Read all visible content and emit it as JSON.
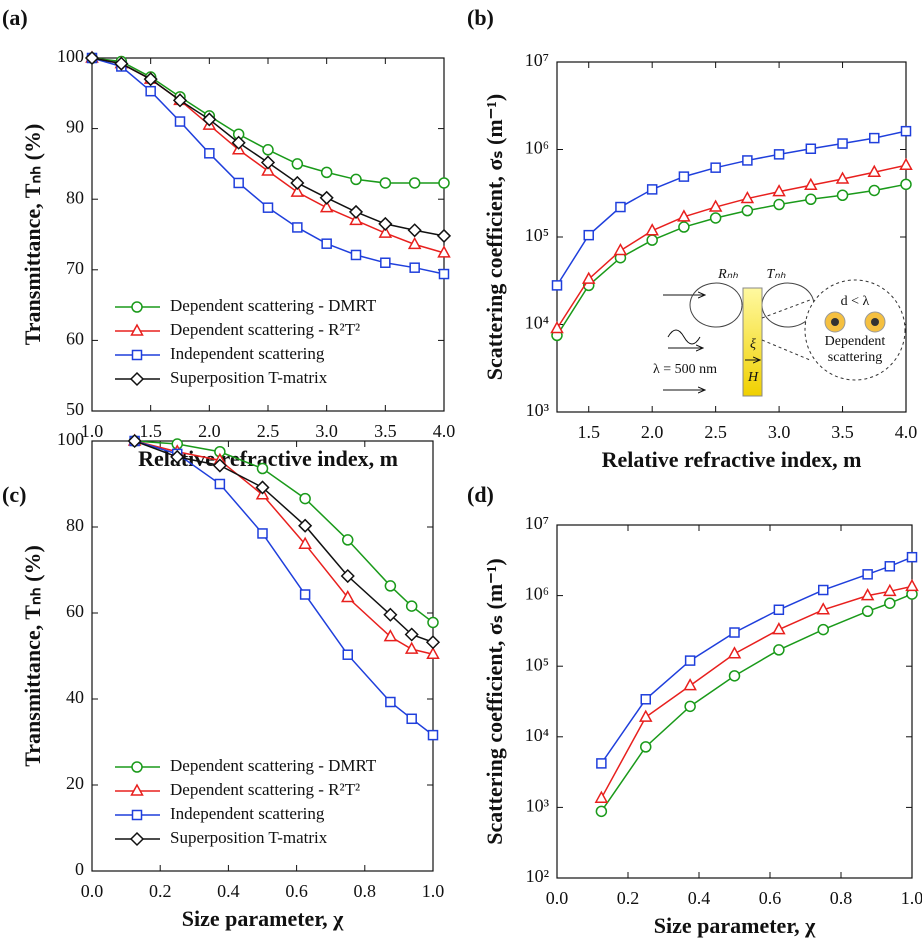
{
  "chart_data": [
    {
      "type": "line",
      "panel_label": "(a)",
      "x_label": "Relative refractive index, m",
      "y_label": "Transmittance, Tₙₕ (%)",
      "x": [
        1.0,
        1.25,
        1.5,
        1.75,
        2.0,
        2.25,
        2.5,
        2.75,
        3.0,
        3.25,
        3.5,
        3.75,
        4.0
      ],
      "xlim": [
        1,
        4
      ],
      "ylim": [
        50,
        100
      ],
      "xticks": [
        {
          "value": 1,
          "label": "1.0"
        },
        1.5,
        {
          "value": 2,
          "label": "2.0"
        },
        2.5,
        {
          "value": 3,
          "label": "3.0"
        },
        3.5,
        {
          "value": 4,
          "label": "4.0"
        }
      ],
      "yticks": [
        50,
        60,
        70,
        80,
        90,
        100
      ],
      "legend": "lower left",
      "series": [
        {
          "name": "Dependent scattering - DMRT",
          "color": "#1a9a1a",
          "marker": "circle",
          "values": [
            100,
            99.5,
            97.3,
            94.5,
            91.8,
            89.2,
            87,
            85,
            83.8,
            82.8,
            82.3,
            82.3,
            82.3
          ]
        },
        {
          "name": "Dependent scattering - R²T²",
          "color": "#e8201e",
          "marker": "triangle",
          "values": [
            100,
            99.2,
            97,
            94,
            90.5,
            87,
            84,
            81,
            78.8,
            77,
            75.2,
            73.6,
            72.4
          ]
        },
        {
          "name": "Independent scattering",
          "color": "#1f3fdc",
          "marker": "square",
          "values": [
            100,
            98.8,
            95.3,
            91,
            86.5,
            82.3,
            78.8,
            76,
            73.7,
            72.1,
            71,
            70.3,
            69.4
          ]
        },
        {
          "name": "Superposition T-matrix",
          "color": "#111111",
          "marker": "diamond",
          "values": [
            100,
            99.2,
            97,
            94,
            91.3,
            88,
            85.2,
            82.3,
            80.2,
            78.2,
            76.5,
            75.6,
            74.8
          ]
        }
      ]
    },
    {
      "type": "line",
      "panel_label": "(b)",
      "x_label": "Relative refractive index, m",
      "y_label": "Scattering coefficient, σₛ (m⁻¹)",
      "x": [
        1.25,
        1.5,
        1.75,
        2.0,
        2.25,
        2.5,
        2.75,
        3.0,
        3.25,
        3.5,
        3.75,
        4.0
      ],
      "xlim": [
        1.25,
        4
      ],
      "ylim": [
        1000,
        10000000
      ],
      "y_scale": "log",
      "xticks": [
        1.5,
        {
          "value": 2,
          "label": "2.0"
        },
        2.5,
        {
          "value": 3,
          "label": "3.0"
        },
        3.5,
        {
          "value": 4,
          "label": "4.0"
        }
      ],
      "yticks": [
        {
          "value": 1000,
          "label": "10³"
        },
        {
          "value": 10000,
          "label": "10⁴"
        },
        {
          "value": 100000,
          "label": "10⁵"
        },
        {
          "value": 1000000,
          "label": "10⁶"
        },
        {
          "value": 10000000,
          "label": "10⁷"
        }
      ],
      "series": [
        {
          "color": "#1a9a1a",
          "marker": "circle",
          "values": [
            7500,
            28000,
            58000,
            92000,
            130000,
            165000,
            200000,
            235000,
            270000,
            300000,
            340000,
            400000
          ]
        },
        {
          "color": "#e8201e",
          "marker": "triangle",
          "values": [
            9000,
            33000,
            70000,
            118000,
            170000,
            220000,
            275000,
            330000,
            390000,
            460000,
            550000,
            660000
          ]
        },
        {
          "color": "#1f3fdc",
          "marker": "square",
          "values": [
            28000,
            105000,
            220000,
            350000,
            490000,
            620000,
            750000,
            880000,
            1020000,
            1170000,
            1350000,
            1620000
          ]
        }
      ],
      "inset": {
        "r_label": "Rₙₕ",
        "t_label": "Tₙₕ",
        "xi": "ξ",
        "thickness": "H",
        "wavelength": "λ = 500 nm",
        "d_label": "d < λ",
        "dep1": "Dependent",
        "dep2": "scattering"
      }
    },
    {
      "type": "line",
      "panel_label": "(c)",
      "x_label": "Size parameter, χ",
      "y_label": "Transmittance, Tₙₕ (%)",
      "x": [
        0.125,
        0.25,
        0.375,
        0.5,
        0.625,
        0.75,
        0.875,
        0.9375,
        1.0
      ],
      "xlim": [
        0,
        1
      ],
      "ylim": [
        0,
        100
      ],
      "xticks": [
        {
          "value": 0,
          "label": "0.0"
        },
        0.2,
        0.4,
        0.6,
        0.8,
        {
          "value": 1,
          "label": "1.0"
        }
      ],
      "yticks": [
        0,
        20,
        40,
        60,
        80,
        100
      ],
      "legend": "lower left",
      "series": [
        {
          "name": "Dependent scattering - DMRT",
          "color": "#1a9a1a",
          "marker": "circle",
          "values": [
            100,
            99.3,
            97.5,
            93.6,
            86.6,
            77,
            66.3,
            61.6,
            57.8
          ]
        },
        {
          "name": "Dependent scattering - R²T²",
          "color": "#e8201e",
          "marker": "triangle",
          "values": [
            100,
            97.5,
            95.5,
            87.5,
            76,
            63.6,
            54.5,
            51.6,
            50.4
          ]
        },
        {
          "name": "Independent scattering",
          "color": "#1f3fdc",
          "marker": "square",
          "values": [
            100,
            97,
            90,
            78.5,
            64.3,
            50.3,
            39.3,
            35.4,
            31.6
          ]
        },
        {
          "name": "Superposition T-matrix",
          "color": "#111111",
          "marker": "diamond",
          "values": [
            100,
            96.3,
            94.3,
            89.2,
            80.3,
            68.6,
            59.6,
            55,
            53.2
          ]
        }
      ]
    },
    {
      "type": "line",
      "panel_label": "(d)",
      "x_label": "Size parameter, χ",
      "y_label": "Scattering coefficient, σₛ (m⁻¹)",
      "x": [
        0.125,
        0.25,
        0.375,
        0.5,
        0.625,
        0.75,
        0.875,
        0.9375,
        1.0
      ],
      "xlim": [
        0,
        1
      ],
      "ylim": [
        100,
        10000000
      ],
      "y_scale": "log",
      "xticks": [
        {
          "value": 0,
          "label": "0.0"
        },
        0.2,
        0.4,
        0.6,
        0.8,
        {
          "value": 1,
          "label": "1.0"
        }
      ],
      "yticks": [
        {
          "value": 100,
          "label": "10²"
        },
        {
          "value": 1000,
          "label": "10³"
        },
        {
          "value": 10000,
          "label": "10⁴"
        },
        {
          "value": 100000,
          "label": "10⁵"
        },
        {
          "value": 1000000,
          "label": "10⁶"
        },
        {
          "value": 10000000,
          "label": "10⁷"
        }
      ],
      "series": [
        {
          "color": "#1a9a1a",
          "marker": "circle",
          "values": [
            880,
            7200,
            27000,
            73000,
            170000,
            330000,
            600000,
            780000,
            1050000
          ]
        },
        {
          "color": "#e8201e",
          "marker": "triangle",
          "values": [
            1350,
            19000,
            53000,
            150000,
            330000,
            630000,
            1000000,
            1150000,
            1350000
          ]
        },
        {
          "color": "#1f3fdc",
          "marker": "square",
          "values": [
            4200,
            34000,
            120000,
            300000,
            630000,
            1200000,
            2000000,
            2600000,
            3500000
          ]
        }
      ]
    }
  ]
}
